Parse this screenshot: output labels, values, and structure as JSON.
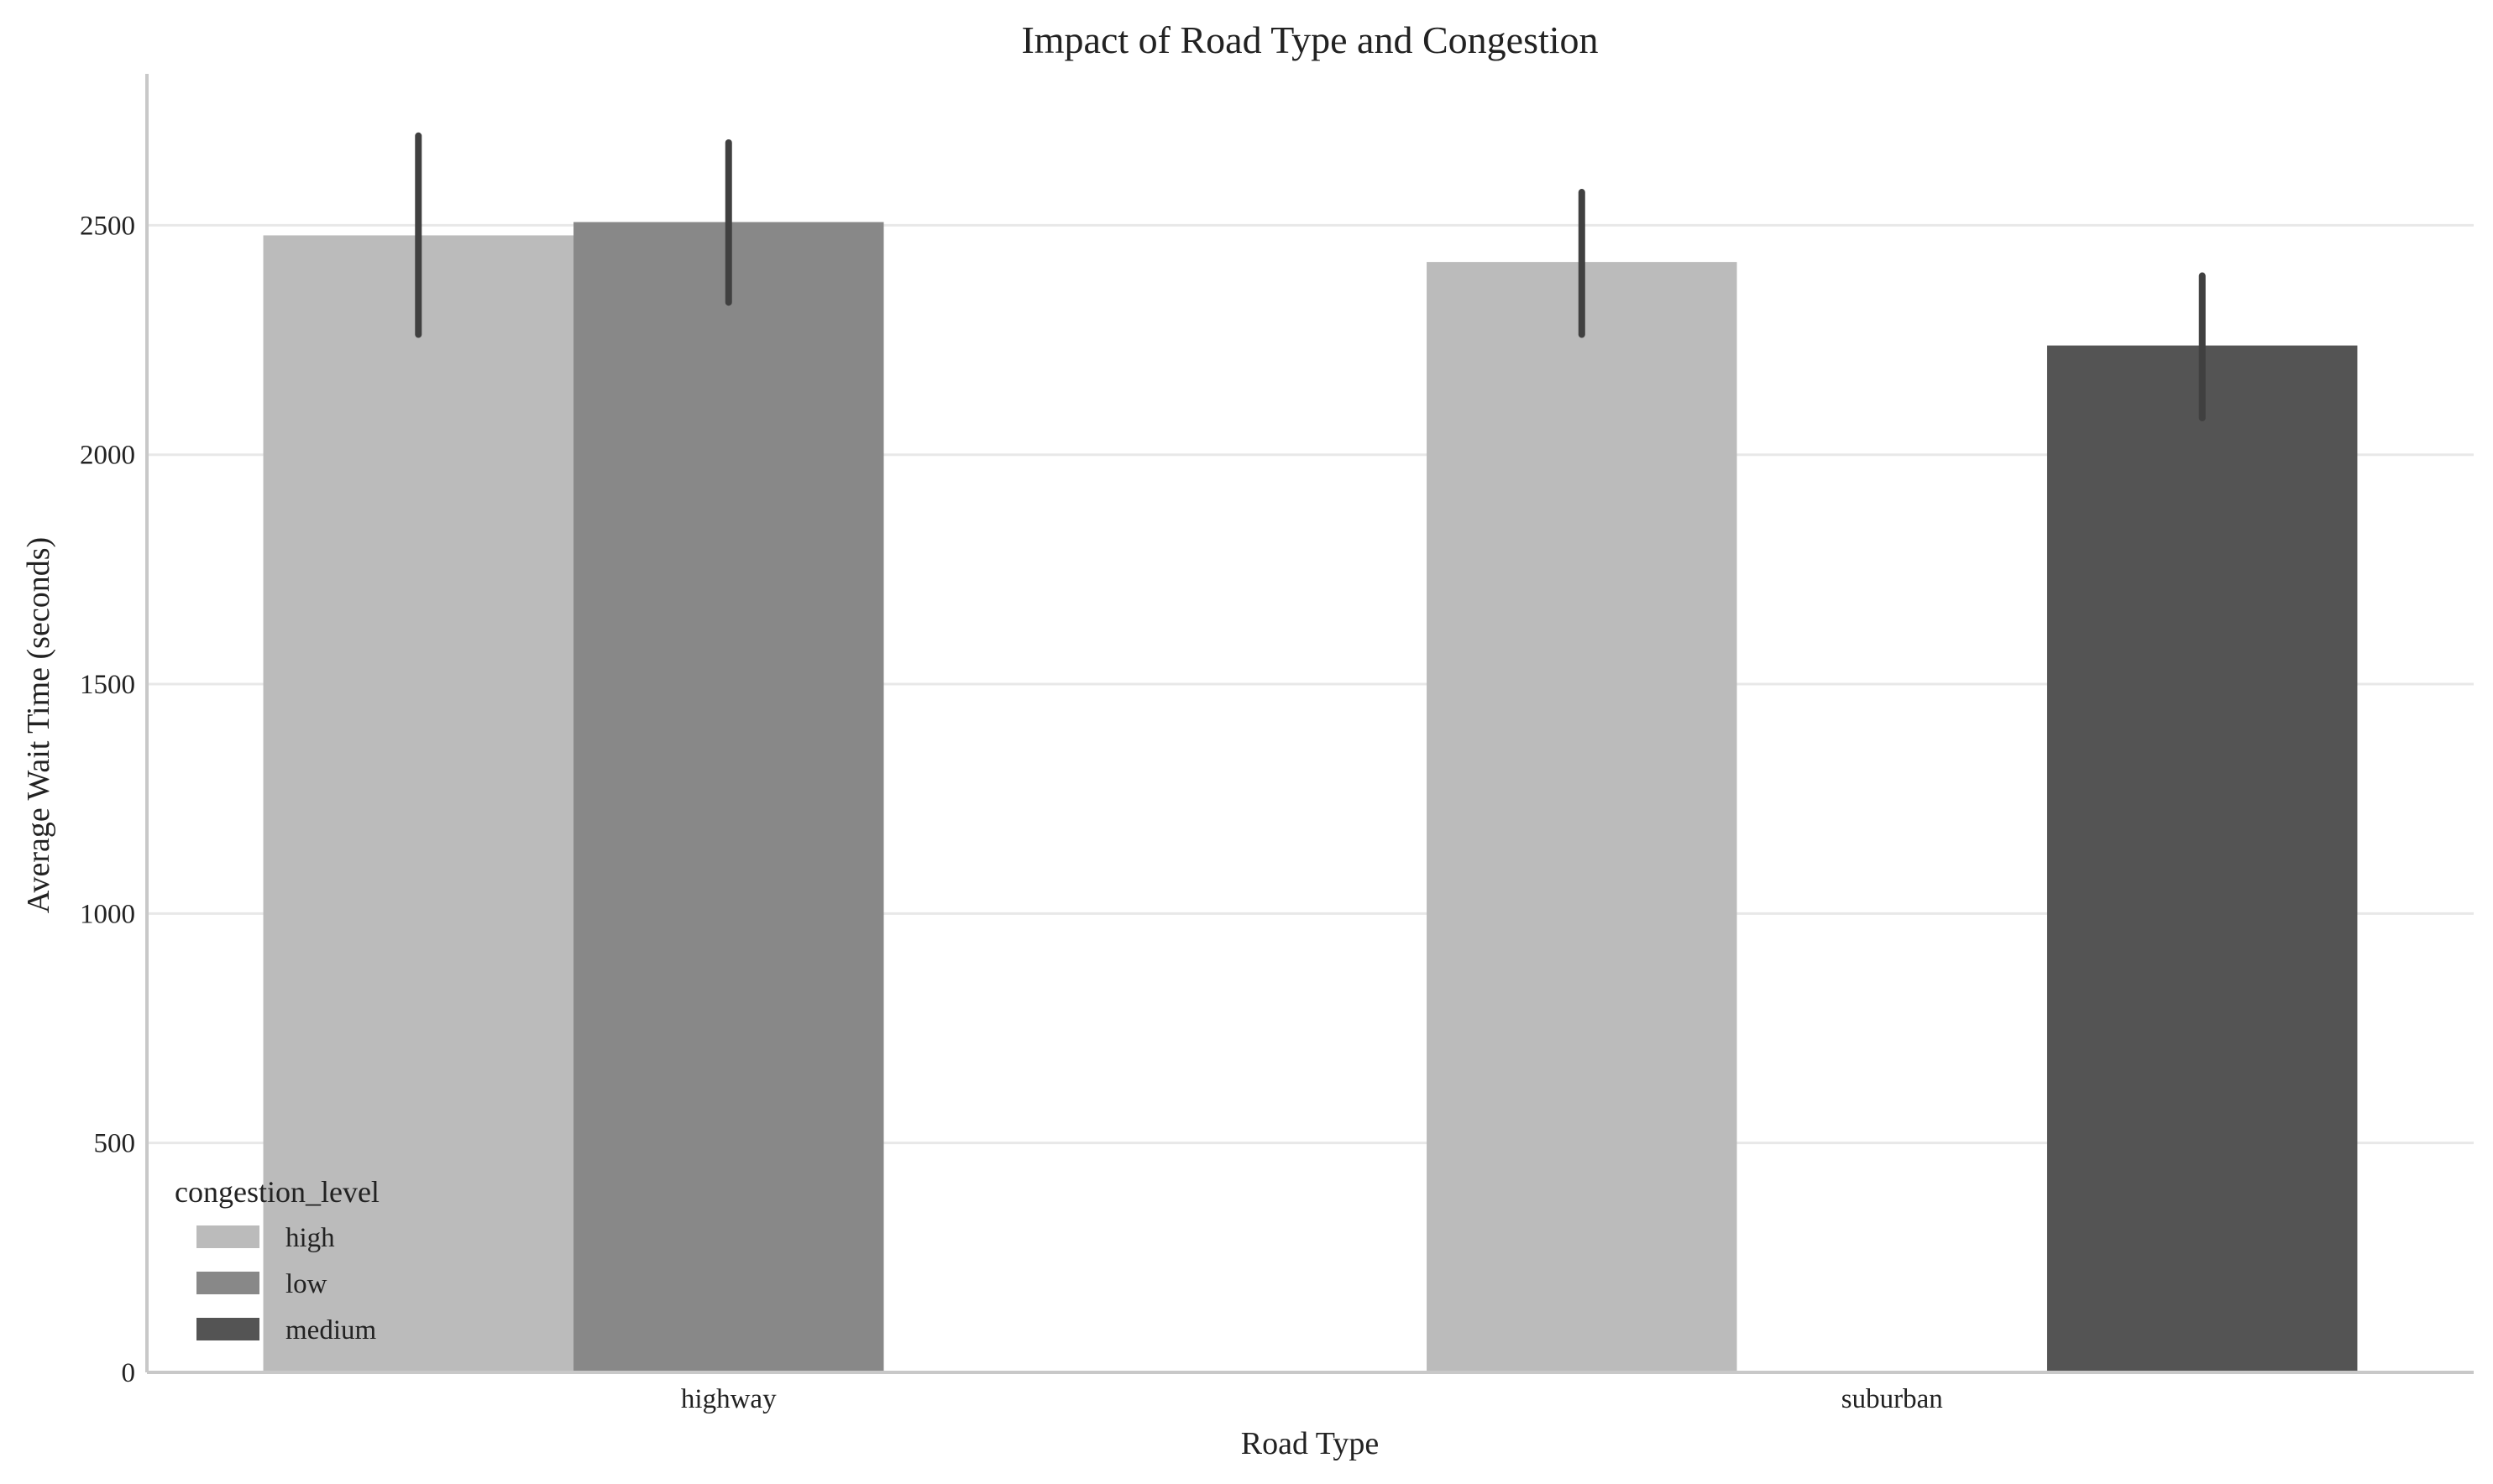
{
  "chart_data": {
    "type": "bar",
    "title": "Impact of Road Type and Congestion",
    "xlabel": "Road Type",
    "ylabel": "Average Wait Time (seconds)",
    "categories": [
      "highway",
      "suburban"
    ],
    "hue_order": [
      "high",
      "low",
      "medium"
    ],
    "ylim": [
      0,
      2830
    ],
    "yticks": [
      0,
      500,
      1000,
      1500,
      2000,
      2500
    ],
    "grid": "horizontal",
    "legend": {
      "title": "congestion_level",
      "placement": "lower-left",
      "entries": [
        {
          "label": "high",
          "color": "#bbbbbb"
        },
        {
          "label": "low",
          "color": "#888888"
        },
        {
          "label": "medium",
          "color": "#545454"
        }
      ]
    },
    "series": [
      {
        "name": "high",
        "color": "#bbbbbb",
        "values": [
          2478,
          2420
        ],
        "ci_low": [
          2262,
          2262
        ],
        "ci_high": [
          2695,
          2572
        ]
      },
      {
        "name": "low",
        "color": "#888888",
        "values": [
          2507,
          null
        ],
        "ci_low": [
          2332,
          null
        ],
        "ci_high": [
          2680,
          null
        ]
      },
      {
        "name": "medium",
        "color": "#545454",
        "values": [
          null,
          2238
        ],
        "ci_low": [
          null,
          2080
        ],
        "ci_high": [
          null,
          2390
        ]
      }
    ],
    "errorbar_color": "#404040",
    "grid_color": "#e8e8e8",
    "axis_color": "#c8c8c8"
  }
}
